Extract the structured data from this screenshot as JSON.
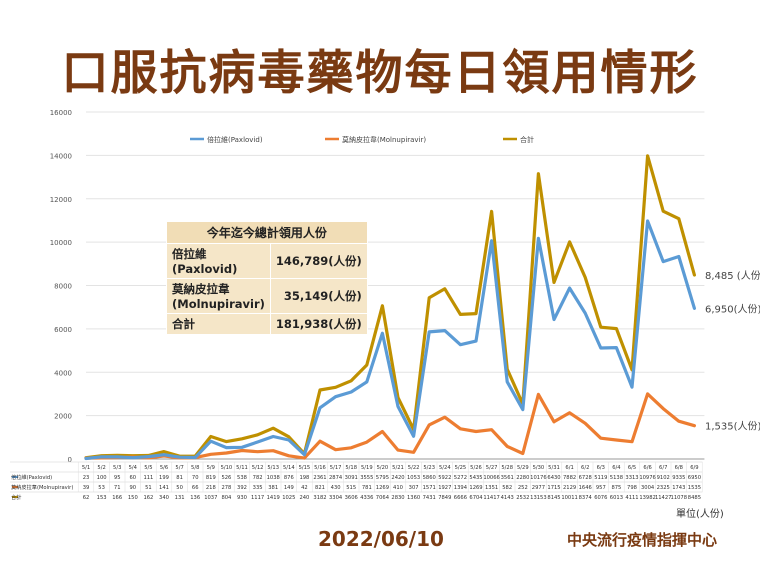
{
  "title": "口服抗病毒藥物每日領用情形",
  "date": "2022/06/10",
  "org": "中央流行疫情指揮中心",
  "unit": "單位(人份)",
  "summary": {
    "header": "今年迄今總計領用人份",
    "rows": [
      {
        "name": "倍拉維\n(Paxlovid)",
        "value": "146,789(人份)"
      },
      {
        "name": "莫納皮拉韋\n(Molnupiravir)",
        "value": "35,149(人份)"
      },
      {
        "name": "合計",
        "value": "181,938(人份)"
      }
    ]
  },
  "chart_data": {
    "type": "line",
    "ylim": [
      0,
      16000
    ],
    "yticks": [
      "0",
      "2000",
      "4000",
      "6000",
      "8000",
      "10000",
      "12000",
      "14000",
      "16000"
    ],
    "categories": [
      "5/1",
      "5/2",
      "5/3",
      "5/4",
      "5/5",
      "5/6",
      "5/7",
      "5/8",
      "5/9",
      "5/10",
      "5/11",
      "5/12",
      "5/13",
      "5/14",
      "5/15",
      "5/16",
      "5/17",
      "5/18",
      "5/19",
      "5/20",
      "5/21",
      "5/22",
      "5/23",
      "5/24",
      "5/25",
      "5/26",
      "5/27",
      "5/28",
      "5/29",
      "5/30",
      "5/31",
      "6/1",
      "6/2",
      "6/3",
      "6/4",
      "6/5",
      "6/6",
      "6/7",
      "6/8",
      "6/9"
    ],
    "legend_position": "top",
    "series": [
      {
        "name": "倍拉維(Paxlovid)",
        "row_label": "倍拉維(Paxlovid)",
        "color": "#5b9bd5",
        "values": [
          23,
          100,
          95,
          60,
          111,
          199,
          81,
          70,
          819,
          526,
          538,
          782,
          1038,
          876,
          198,
          2361,
          2874,
          3091,
          3555,
          5795,
          2420,
          1053,
          5860,
          5922,
          5272,
          5435,
          10066,
          3561,
          2280,
          10176,
          6430,
          7882,
          6728,
          5119,
          5138,
          3313,
          10976,
          9102,
          9335,
          6950
        ]
      },
      {
        "name": "莫納皮拉韋(Molnupiravir)",
        "row_label": "莫納皮拉韋(Molnupiravir)",
        "color": "#ed7d31",
        "values": [
          39,
          53,
          71,
          90,
          51,
          141,
          50,
          66,
          218,
          278,
          392,
          335,
          381,
          149,
          42,
          821,
          430,
          515,
          781,
          1269,
          410,
          307,
          1571,
          1927,
          1394,
          1269,
          1351,
          582,
          252,
          2977,
          1715,
          2129,
          1646,
          957,
          875,
          798,
          3004,
          2325,
          1743,
          1535
        ]
      },
      {
        "name": "合計",
        "row_label": "合計",
        "color": "#bf9000",
        "values": [
          62,
          153,
          166,
          150,
          162,
          340,
          131,
          136,
          1037,
          804,
          930,
          1117,
          1419,
          1025,
          240,
          3182,
          3304,
          3606,
          4336,
          7064,
          2830,
          1360,
          7431,
          7849,
          6666,
          6704,
          11417,
          4143,
          2532,
          13153,
          8145,
          10011,
          8374,
          6076,
          6013,
          4111,
          13982,
          11427,
          11078,
          8485
        ]
      }
    ],
    "end_labels": [
      "8,485 (人份)",
      "6,950(人份)",
      "1,535(人份)"
    ]
  }
}
